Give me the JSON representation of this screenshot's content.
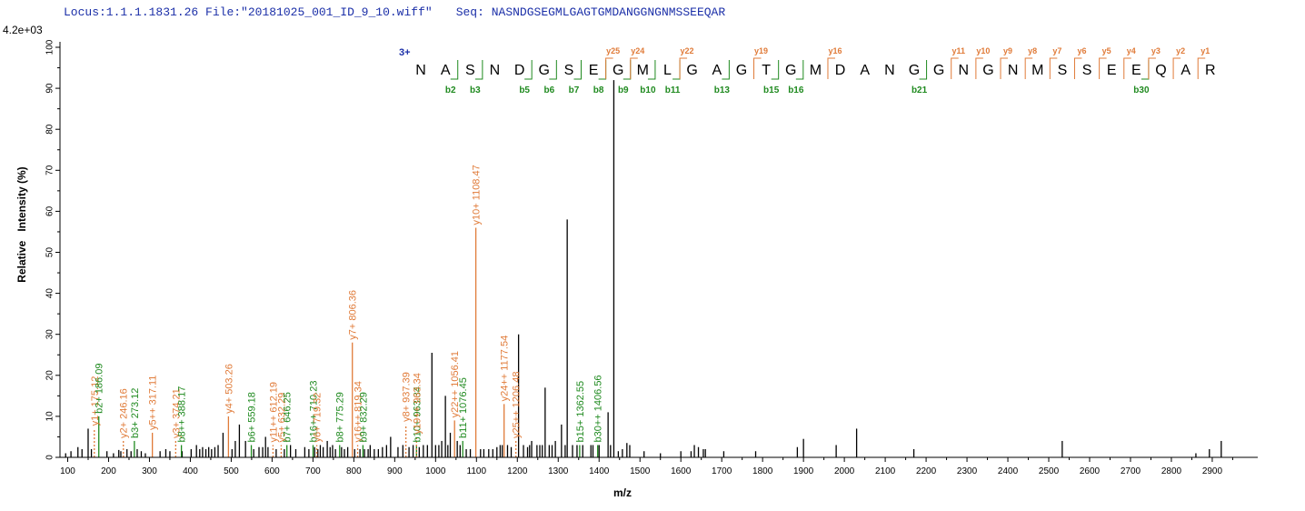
{
  "header": {
    "locus": "Locus:1.1.1.1831.26",
    "file": "File:\"20181025_001_ID_9_10.wiff\"",
    "seq_label": "Seq:",
    "seq_value": "NASNDGSEGMLGAGTGMDANGGNGNMSSEEQAR"
  },
  "chart_data": {
    "type": "bar",
    "title": "",
    "xlabel": "m/z",
    "ylabel": "Relative   Intensity (%)",
    "intensity_max_label": "4.2e+03",
    "xlim": [
      100,
      2970
    ],
    "ylim": [
      0,
      100
    ],
    "x_ticks": [
      100,
      200,
      300,
      400,
      500,
      600,
      700,
      800,
      900,
      1000,
      1100,
      1200,
      1300,
      1400,
      1500,
      1600,
      1700,
      1800,
      1900,
      2000,
      2100,
      2200,
      2300,
      2400,
      2500,
      2600,
      2700,
      2800,
      2900
    ],
    "y_ticks": [
      0,
      10,
      20,
      30,
      40,
      50,
      60,
      70,
      80,
      90,
      100
    ],
    "colors": {
      "b": "#1f8a1f",
      "y": "#e07b39",
      "unassigned": "#000000",
      "charge": "#1b2fa8"
    },
    "peptide": {
      "charge_label": "3+",
      "sequence": [
        "N",
        "A",
        "S",
        "N",
        "D",
        "G",
        "S",
        "E",
        "G",
        "M",
        "L",
        "G",
        "A",
        "G",
        "T",
        "G",
        "M",
        "D",
        "A",
        "N",
        "G",
        "G",
        "N",
        "G",
        "N",
        "M",
        "S",
        "S",
        "E",
        "E",
        "Q",
        "A",
        "R"
      ],
      "b_ions": [
        {
          "pos": 2,
          "label": "b2"
        },
        {
          "pos": 3,
          "label": "b3"
        },
        {
          "pos": 5,
          "label": "b5"
        },
        {
          "pos": 6,
          "label": "b6"
        },
        {
          "pos": 7,
          "label": "b7"
        },
        {
          "pos": 8,
          "label": "b8"
        },
        {
          "pos": 9,
          "label": "b9"
        },
        {
          "pos": 10,
          "label": "b10"
        },
        {
          "pos": 11,
          "label": "b11"
        },
        {
          "pos": 13,
          "label": "b13"
        },
        {
          "pos": 15,
          "label": "b15"
        },
        {
          "pos": 16,
          "label": "b16"
        },
        {
          "pos": 21,
          "label": "b21"
        },
        {
          "pos": 30,
          "label": "b30"
        }
      ],
      "y_ions": [
        {
          "pos": 9,
          "label": "y25"
        },
        {
          "pos": 10,
          "label": "y24"
        },
        {
          "pos": 12,
          "label": "y22"
        },
        {
          "pos": 15,
          "label": "y19"
        },
        {
          "pos": 18,
          "label": "y16"
        },
        {
          "pos": 23,
          "label": "y11"
        },
        {
          "pos": 24,
          "label": "y10"
        },
        {
          "pos": 25,
          "label": "y9"
        },
        {
          "pos": 26,
          "label": "y8"
        },
        {
          "pos": 27,
          "label": "y7"
        },
        {
          "pos": 28,
          "label": "y6"
        },
        {
          "pos": 29,
          "label": "y5"
        },
        {
          "pos": 30,
          "label": "y4"
        },
        {
          "pos": 31,
          "label": "y3"
        },
        {
          "pos": 32,
          "label": "y2"
        },
        {
          "pos": 33,
          "label": "y1"
        }
      ]
    },
    "labeled_peaks": [
      {
        "mz": 175.12,
        "intensity": 7,
        "ion": "y",
        "label": "y1+ 175.12",
        "dashed": true
      },
      {
        "mz": 186.09,
        "intensity": 10,
        "ion": "b",
        "label": "b2+ 186.09"
      },
      {
        "mz": 246.16,
        "intensity": 4,
        "ion": "y",
        "label": "y2+ 246.16",
        "dashed": true
      },
      {
        "mz": 273.12,
        "intensity": 4,
        "ion": "b",
        "label": "b3+ 273.12"
      },
      {
        "mz": 317.11,
        "intensity": 6,
        "ion": "y",
        "label": "y5++ 317.11"
      },
      {
        "mz": 374.21,
        "intensity": 4,
        "ion": "y",
        "label": "y3+ 374.21",
        "dashed": true
      },
      {
        "mz": 388.17,
        "intensity": 3,
        "ion": "b",
        "label": "b8++ 388.17"
      },
      {
        "mz": 503.26,
        "intensity": 10,
        "ion": "y",
        "label": "y4+ 503.26"
      },
      {
        "mz": 559.18,
        "intensity": 3,
        "ion": "b",
        "label": "b6+ 559.18"
      },
      {
        "mz": 612.19,
        "intensity": 3,
        "ion": "y",
        "label": "y11++ 612.19",
        "dashed": true
      },
      {
        "mz": 632.29,
        "intensity": 3,
        "ion": "y",
        "label": "y5+ 632.29",
        "dashed": true
      },
      {
        "mz": 646.25,
        "intensity": 3,
        "ion": "b",
        "label": "b7+ 646.25"
      },
      {
        "mz": 710.23,
        "intensity": 3,
        "ion": "b",
        "label": "b16++ 710.23"
      },
      {
        "mz": 719.32,
        "intensity": 3,
        "ion": "y",
        "label": "y6+ 719.32",
        "dashed": true
      },
      {
        "mz": 775.29,
        "intensity": 3,
        "ion": "b",
        "label": "b8+ 775.29"
      },
      {
        "mz": 806.36,
        "intensity": 28,
        "ion": "y",
        "label": "y7+ 806.36"
      },
      {
        "mz": 819.34,
        "intensity": 3,
        "ion": "y",
        "label": "y16++ 819.34",
        "dashed": true
      },
      {
        "mz": 832.29,
        "intensity": 3,
        "ion": "b",
        "label": "b9+ 832.29"
      },
      {
        "mz": 937.39,
        "intensity": 8,
        "ion": "y",
        "label": "y8+ 937.39",
        "dashed": true
      },
      {
        "mz": 963.34,
        "intensity": 3,
        "ion": "b",
        "label": "b10+ 963.34"
      },
      {
        "mz": 963.34,
        "intensity": 5,
        "ion": "y",
        "label": "y19++ 963.34",
        "dashed": true
      },
      {
        "mz": 1056.41,
        "intensity": 9,
        "ion": "y",
        "label": "y22++ 1056.41"
      },
      {
        "mz": 1076.45,
        "intensity": 4,
        "ion": "b",
        "label": "b11+ 1076.45"
      },
      {
        "mz": 1108.47,
        "intensity": 56,
        "ion": "y",
        "label": "y10+ 1108.47"
      },
      {
        "mz": 1177.54,
        "intensity": 13,
        "ion": "y",
        "label": "y24++ 1177.54"
      },
      {
        "mz": 1206.48,
        "intensity": 4,
        "ion": "y",
        "label": "y25++ 1206.48",
        "dashed": true
      },
      {
        "mz": 1362.55,
        "intensity": 3,
        "ion": "b",
        "label": "b15+ 1362.55"
      },
      {
        "mz": 1406.56,
        "intensity": 3,
        "ion": "b",
        "label": "b30++ 1406.56"
      }
    ],
    "unlabeled_peaks": [
      [
        105,
        1
      ],
      [
        118,
        1.5
      ],
      [
        135,
        2.5
      ],
      [
        145,
        2
      ],
      [
        160,
        7
      ],
      [
        168,
        2
      ],
      [
        206,
        1.5
      ],
      [
        222,
        1
      ],
      [
        235,
        1.8
      ],
      [
        240,
        1.5
      ],
      [
        255,
        2
      ],
      [
        265,
        1.5
      ],
      [
        280,
        2
      ],
      [
        290,
        1.5
      ],
      [
        300,
        1
      ],
      [
        336,
        1.5
      ],
      [
        350,
        2
      ],
      [
        360,
        1.5
      ],
      [
        390,
        1.5
      ],
      [
        412,
        2
      ],
      [
        425,
        3
      ],
      [
        433,
        2
      ],
      [
        440,
        2.5
      ],
      [
        448,
        2
      ],
      [
        455,
        2.5
      ],
      [
        462,
        2
      ],
      [
        470,
        2.5
      ],
      [
        478,
        3
      ],
      [
        490,
        6
      ],
      [
        512,
        2
      ],
      [
        520,
        4
      ],
      [
        530,
        8
      ],
      [
        545,
        4
      ],
      [
        565,
        2
      ],
      [
        578,
        2.5
      ],
      [
        587,
        2.5
      ],
      [
        594,
        5
      ],
      [
        600,
        2.5
      ],
      [
        620,
        2
      ],
      [
        640,
        2
      ],
      [
        655,
        3
      ],
      [
        668,
        2
      ],
      [
        690,
        2.5
      ],
      [
        700,
        2
      ],
      [
        714,
        2.5
      ],
      [
        722,
        2
      ],
      [
        728,
        3
      ],
      [
        735,
        2.5
      ],
      [
        745,
        4
      ],
      [
        752,
        2.5
      ],
      [
        758,
        3
      ],
      [
        765,
        2
      ],
      [
        780,
        2.5
      ],
      [
        787,
        2
      ],
      [
        795,
        2.5
      ],
      [
        812,
        2
      ],
      [
        825,
        2
      ],
      [
        836,
        2
      ],
      [
        845,
        2
      ],
      [
        850,
        3
      ],
      [
        860,
        2
      ],
      [
        870,
        2
      ],
      [
        880,
        2.5
      ],
      [
        890,
        3
      ],
      [
        900,
        5
      ],
      [
        918,
        2.5
      ],
      [
        930,
        3
      ],
      [
        945,
        2.5
      ],
      [
        955,
        3
      ],
      [
        970,
        2.5
      ],
      [
        980,
        3
      ],
      [
        990,
        3
      ],
      [
        1001,
        25.5
      ],
      [
        1010,
        3
      ],
      [
        1018,
        3
      ],
      [
        1025,
        4
      ],
      [
        1034,
        15
      ],
      [
        1040,
        3
      ],
      [
        1046,
        6
      ],
      [
        1063,
        4
      ],
      [
        1070,
        3
      ],
      [
        1085,
        2
      ],
      [
        1095,
        2
      ],
      [
        1120,
        2
      ],
      [
        1128,
        2
      ],
      [
        1140,
        2
      ],
      [
        1150,
        2
      ],
      [
        1160,
        2.5
      ],
      [
        1168,
        3
      ],
      [
        1173,
        3
      ],
      [
        1186,
        3
      ],
      [
        1195,
        2.5
      ],
      [
        1213,
        30
      ],
      [
        1225,
        3
      ],
      [
        1235,
        2.5
      ],
      [
        1240,
        3
      ],
      [
        1245,
        4
      ],
      [
        1258,
        3
      ],
      [
        1265,
        3
      ],
      [
        1271,
        3
      ],
      [
        1278,
        17
      ],
      [
        1288,
        3
      ],
      [
        1295,
        3
      ],
      [
        1303,
        4
      ],
      [
        1318,
        8
      ],
      [
        1327,
        3
      ],
      [
        1332,
        58
      ],
      [
        1345,
        3
      ],
      [
        1356,
        3
      ],
      [
        1370,
        3
      ],
      [
        1390,
        3
      ],
      [
        1395,
        3
      ],
      [
        1410,
        3
      ],
      [
        1432,
        11
      ],
      [
        1438,
        3
      ],
      [
        1446,
        92
      ],
      [
        1457,
        1.5
      ],
      [
        1467,
        2
      ],
      [
        1478,
        3.5
      ],
      [
        1485,
        3
      ],
      [
        1520,
        1.5
      ],
      [
        1560,
        1
      ],
      [
        1610,
        1.5
      ],
      [
        1635,
        1.5
      ],
      [
        1643,
        3
      ],
      [
        1653,
        2.5
      ],
      [
        1665,
        2
      ],
      [
        1670,
        2
      ],
      [
        1715,
        1.5
      ],
      [
        1793,
        1.5
      ],
      [
        1895,
        2.5
      ],
      [
        1910,
        4.5
      ],
      [
        1990,
        3
      ],
      [
        2040,
        7
      ],
      [
        2180,
        2
      ],
      [
        2543,
        4
      ],
      [
        2870,
        1
      ],
      [
        2903,
        2
      ],
      [
        2932,
        4
      ]
    ]
  }
}
